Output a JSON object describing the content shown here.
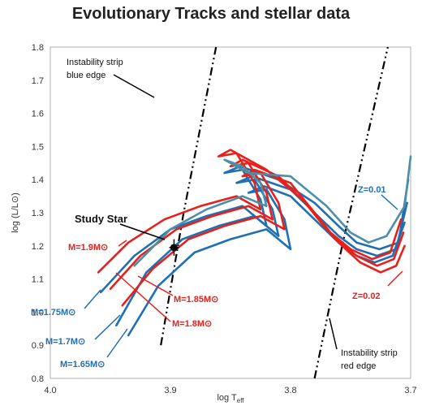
{
  "chart_data": {
    "type": "line",
    "title": "Evolutionary Tracks and stellar data",
    "xlabel": "log T",
    "xlabel_sub": "eff",
    "ylabel": "log (L/L⊙)",
    "xlim": [
      4.0,
      3.7
    ],
    "ylim": [
      0.8,
      1.8
    ],
    "x_reversed": true,
    "xticks": [
      "4.0",
      "3.9",
      "3.8",
      "3.7"
    ],
    "yticks": [
      "0.8",
      "0.9",
      "1.0",
      "1.1",
      "1.2",
      "1.3",
      "1.4",
      "1.5",
      "1.6",
      "1.7",
      "1.8"
    ],
    "grid": false,
    "colors": {
      "blue": "#1f6fb3",
      "red": "#e8201c",
      "teal": "#4c90a8",
      "black": "#000000"
    },
    "study_star": {
      "label": "Study Star",
      "x": 3.897,
      "y": 1.195,
      "x_err": 0.004,
      "y_err": 0.025
    },
    "instability_strip": {
      "blue_edge": {
        "label": "Instability strip blue edge",
        "x": [
          3.908,
          3.889,
          3.862
        ],
        "y": [
          0.9,
          1.3,
          1.8
        ]
      },
      "red_edge": {
        "label": "Instability strip red edge",
        "x": [
          3.78,
          3.757,
          3.719
        ],
        "y": [
          0.8,
          1.2,
          1.8
        ]
      }
    },
    "metallicity_labels": [
      {
        "text": "Z=0.01",
        "color": "#1f6fb3"
      },
      {
        "text": "Z=0.02",
        "color": "#e8201c"
      }
    ],
    "series": [
      {
        "name": "M=1.65M⊙",
        "color": "#1f6fb3",
        "x": [
          3.935,
          3.91,
          3.88,
          3.85,
          3.82,
          3.8,
          3.805,
          3.82,
          3.835,
          3.822,
          3.8,
          3.78,
          3.76,
          3.745,
          3.73,
          3.715,
          3.705
        ],
        "y": [
          0.93,
          1.08,
          1.18,
          1.22,
          1.25,
          1.19,
          1.28,
          1.37,
          1.36,
          1.38,
          1.35,
          1.28,
          1.21,
          1.17,
          1.15,
          1.17,
          1.27
        ]
      },
      {
        "name": "M=1.7M⊙",
        "color": "#1f6fb3",
        "x": [
          3.945,
          3.92,
          3.89,
          3.86,
          3.83,
          3.81,
          3.815,
          3.83,
          3.845,
          3.832,
          3.8,
          3.78,
          3.76,
          3.745,
          3.728,
          3.712,
          3.703
        ],
        "y": [
          0.96,
          1.12,
          1.22,
          1.26,
          1.29,
          1.23,
          1.31,
          1.4,
          1.39,
          1.41,
          1.37,
          1.3,
          1.23,
          1.19,
          1.17,
          1.19,
          1.33
        ]
      },
      {
        "name": "M=1.75M⊙",
        "color": "#1f6fb3",
        "x": [
          3.958,
          3.93,
          3.9,
          3.87,
          3.84,
          3.82,
          3.825,
          3.84,
          3.855,
          3.842,
          3.81,
          3.78,
          3.76,
          3.745,
          3.726,
          3.71,
          3.702
        ],
        "y": [
          1.06,
          1.17,
          1.25,
          1.29,
          1.32,
          1.26,
          1.34,
          1.43,
          1.42,
          1.44,
          1.4,
          1.33,
          1.26,
          1.21,
          1.19,
          1.21,
          1.4
        ]
      },
      {
        "name": "M=1.8M⊙",
        "color": "#e8201c",
        "x": [
          3.94,
          3.915,
          3.885,
          3.855,
          3.825,
          3.805,
          3.81,
          3.825,
          3.84,
          3.83,
          3.8,
          3.78,
          3.76,
          3.742,
          3.725,
          3.712,
          3.705
        ],
        "y": [
          1.02,
          1.13,
          1.22,
          1.26,
          1.29,
          1.25,
          1.33,
          1.42,
          1.41,
          1.43,
          1.39,
          1.3,
          1.21,
          1.15,
          1.12,
          1.14,
          1.2
        ]
      },
      {
        "name": "M=1.85M⊙",
        "color": "#e8201c",
        "x": [
          3.95,
          3.925,
          3.895,
          3.865,
          3.835,
          3.815,
          3.82,
          3.835,
          3.85,
          3.84,
          3.81,
          3.785,
          3.765,
          3.745,
          3.728,
          3.714,
          3.706
        ],
        "y": [
          1.07,
          1.17,
          1.25,
          1.29,
          1.32,
          1.28,
          1.36,
          1.45,
          1.44,
          1.46,
          1.41,
          1.32,
          1.23,
          1.17,
          1.14,
          1.16,
          1.24
        ]
      },
      {
        "name": "M=1.9M⊙",
        "color": "#e8201c",
        "x": [
          3.96,
          3.935,
          3.905,
          3.875,
          3.845,
          3.825,
          3.83,
          3.845,
          3.86,
          3.85,
          3.82,
          3.79,
          3.77,
          3.75,
          3.732,
          3.717,
          3.708
        ],
        "y": [
          1.12,
          1.21,
          1.28,
          1.32,
          1.35,
          1.31,
          1.39,
          1.48,
          1.47,
          1.49,
          1.43,
          1.34,
          1.25,
          1.19,
          1.16,
          1.18,
          1.28
        ]
      },
      {
        "name": "",
        "color": "#4c90a8",
        "x": [
          3.93,
          3.9,
          3.87,
          3.84,
          3.82,
          3.825,
          3.84,
          3.855,
          3.835,
          3.8,
          3.77,
          3.75,
          3.735,
          3.72,
          3.705,
          3.7
        ],
        "y": [
          1.14,
          1.25,
          1.31,
          1.35,
          1.32,
          1.39,
          1.44,
          1.46,
          1.42,
          1.41,
          1.32,
          1.24,
          1.21,
          1.23,
          1.32,
          1.47
        ]
      }
    ],
    "labels": {
      "m19": "M=1.9M⊙",
      "m185": "M=1.85M⊙",
      "m18": "M=1.8M⊙",
      "m175": "M=1.75M⊙",
      "m17": "M=1.7M⊙",
      "m165": "M=1.65M⊙",
      "blue_edge_line1": "Instability strip",
      "blue_edge_line2": "blue edge",
      "red_edge_line1": "Instability strip",
      "red_edge_line2": "red edge"
    }
  }
}
